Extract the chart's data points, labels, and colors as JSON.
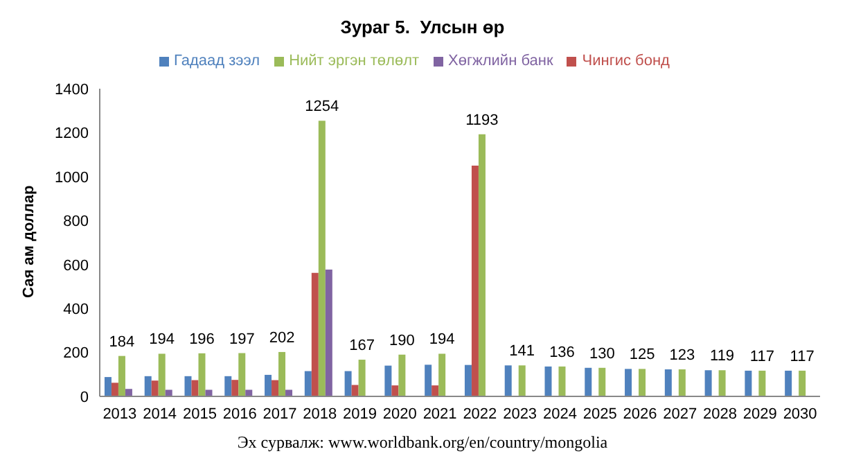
{
  "chart_data": {
    "type": "bar",
    "title": "Зураг 5.  Улсын өр",
    "ylabel": "Сая ам доллар",
    "annotations": [
      "Эх сурвалж: www.worldbank.org/en/country/mongolia"
    ],
    "categories": [
      "2013",
      "2014",
      "2015",
      "2016",
      "2017",
      "2018",
      "2019",
      "2020",
      "2021",
      "2022",
      "2023",
      "2024",
      "2025",
      "2026",
      "2027",
      "2028",
      "2029",
      "2030"
    ],
    "series": [
      {
        "name": "Гадаад зээл",
        "color": "#4f81bd",
        "values": [
          88,
          92,
          92,
          92,
          98,
          115,
          115,
          140,
          144,
          143,
          141,
          136,
          130,
          125,
          123,
          119,
          117,
          117
        ]
      },
      {
        "name": "Чингис бонд",
        "color": "#c0504d",
        "values": [
          62,
          72,
          74,
          75,
          74,
          562,
          52,
          50,
          50,
          1050,
          null,
          null,
          null,
          null,
          null,
          null,
          null,
          null
        ]
      },
      {
        "name": "Нийт эргэн төлөлт",
        "color": "#9bbb59",
        "values": [
          184,
          194,
          196,
          197,
          202,
          1254,
          167,
          190,
          194,
          1193,
          141,
          136,
          130,
          125,
          123,
          119,
          117,
          117
        ],
        "value_labels": [
          "184",
          "194",
          "196",
          "197",
          "202",
          "1254",
          "167",
          "190",
          "194",
          "1193",
          "141",
          "136",
          "130",
          "125",
          "123",
          "119",
          "117",
          "117"
        ]
      },
      {
        "name": "Хөгжлийн банк",
        "color": "#8064a2",
        "values": [
          34,
          30,
          30,
          30,
          30,
          577,
          null,
          null,
          null,
          null,
          null,
          null,
          null,
          null,
          null,
          null,
          null,
          null
        ]
      }
    ],
    "ylim": [
      0,
      1400
    ],
    "yticks": [
      0,
      200,
      400,
      600,
      800,
      1000,
      1200,
      1400
    ],
    "grid": false,
    "legend": "top"
  }
}
